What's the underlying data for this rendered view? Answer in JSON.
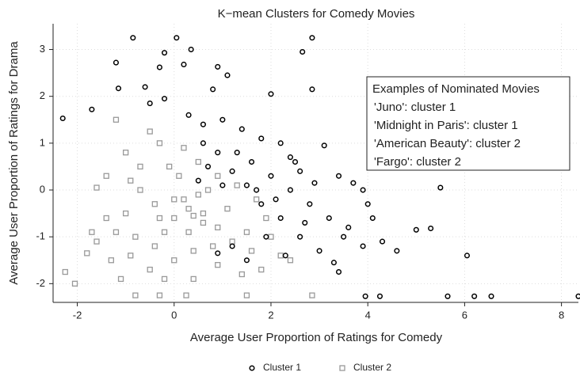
{
  "chart_data": {
    "type": "scatter",
    "title": "K−mean Clusters for Comedy Movies",
    "x_label": "Average User Proportion of Ratings for Comedy",
    "y_label": "Average User Proportion of Ratings for Drama",
    "xlim": [
      -2.5,
      8.35
    ],
    "ylim": [
      -2.4,
      3.55
    ],
    "xticks": [
      -2,
      0,
      2,
      4,
      6,
      8
    ],
    "yticks": [
      -2,
      -1,
      0,
      1,
      2,
      3
    ],
    "grid": true,
    "legend": "bottom",
    "annotation_box": {
      "title": "Examples of Nominated Movies",
      "lines": [
        "'Juno': cluster 1",
        "'Midnight in Paris': cluster 1",
        "'American Beauty': cluster 2",
        "'Fargo': cluster 2"
      ]
    },
    "series": [
      {
        "name": "Cluster 1",
        "color": "#000000",
        "marker": "circle",
        "x": [
          -2.3,
          -1.7,
          -1.2,
          -1.15,
          -0.85,
          0.05,
          0.35,
          -0.2,
          -0.3,
          0.2,
          0.9,
          1.1,
          0.8,
          2.0,
          2.65,
          2.85,
          2.85,
          -0.6,
          -0.5,
          -0.2,
          0.3,
          0.6,
          1.0,
          1.4,
          1.8,
          2.2,
          2.5,
          3.1,
          3.4,
          3.7,
          3.9,
          4.0,
          4.1,
          3.6,
          3.5,
          3.3,
          3.4,
          3.0,
          2.6,
          2.2,
          1.8,
          1.5,
          1.2,
          0.9,
          0.6,
          1.6,
          2.0,
          2.4,
          2.8,
          1.9,
          2.3,
          1.5,
          1.2,
          0.9,
          4.6,
          4.3,
          5.0,
          5.3,
          5.5,
          6.05,
          3.95,
          4.25,
          5.65,
          6.2,
          6.55,
          8.35,
          2.6,
          1.7,
          2.1,
          2.9,
          1.3,
          0.5,
          0.7,
          1.0,
          2.4,
          3.2,
          2.7,
          3.9
        ],
        "values": [
          1.53,
          1.72,
          2.72,
          2.17,
          3.25,
          3.25,
          3.0,
          2.93,
          2.62,
          2.68,
          2.63,
          2.45,
          2.15,
          2.05,
          2.95,
          3.25,
          2.15,
          2.2,
          1.85,
          1.95,
          1.6,
          1.4,
          1.5,
          1.3,
          1.1,
          1.0,
          0.6,
          0.95,
          0.3,
          0.15,
          0.0,
          -0.3,
          -0.6,
          -0.8,
          -1.0,
          -1.55,
          -1.75,
          -1.3,
          -1.0,
          -0.6,
          -0.3,
          0.1,
          0.4,
          0.8,
          1.0,
          0.6,
          0.3,
          0.0,
          -0.3,
          -1.0,
          -1.4,
          -1.5,
          -1.2,
          -1.35,
          -1.3,
          -1.1,
          -0.85,
          -0.82,
          0.05,
          -1.4,
          -2.27,
          -2.27,
          -2.27,
          -2.27,
          -2.27,
          -2.27,
          0.4,
          0.0,
          -0.2,
          0.15,
          0.8,
          0.2,
          0.5,
          0.1,
          0.7,
          -0.6,
          -0.7,
          -1.2
        ]
      },
      {
        "name": "Cluster 2",
        "color": "#999999",
        "marker": "square",
        "x": [
          -2.25,
          -2.05,
          -1.8,
          -1.6,
          -1.4,
          -1.6,
          -1.3,
          -1.1,
          -0.8,
          -0.3,
          0.25,
          1.5,
          2.85,
          -1.2,
          -1.0,
          -0.7,
          -0.5,
          -0.3,
          0.2,
          0.5,
          0.9,
          1.3,
          1.7,
          1.9,
          2.2,
          1.8,
          1.4,
          0.9,
          0.4,
          0.0,
          -0.4,
          -0.8,
          -1.0,
          -0.7,
          -0.4,
          0.0,
          0.3,
          0.6,
          0.9,
          1.2,
          0.2,
          0.5,
          0.8,
          -0.2,
          0.1,
          -0.9,
          -1.2,
          1.1,
          1.5,
          0.4,
          -0.5,
          -1.4,
          -0.9,
          0.7,
          0.3,
          0.6,
          0.0,
          -0.3,
          0.4,
          1.6,
          2.0,
          -0.1,
          -1.7,
          -0.2,
          2.4
        ],
        "values": [
          -1.75,
          -2.0,
          -1.35,
          -1.1,
          -0.6,
          0.05,
          -1.5,
          -1.9,
          -2.25,
          -2.25,
          -2.25,
          -2.25,
          -2.25,
          1.5,
          0.8,
          0.5,
          1.25,
          1.0,
          0.9,
          0.6,
          0.3,
          0.1,
          -0.2,
          -0.6,
          -1.4,
          -1.7,
          -1.8,
          -1.6,
          -1.9,
          -1.5,
          -1.2,
          -1.0,
          -0.5,
          0.0,
          -0.3,
          -0.6,
          -0.9,
          -0.5,
          -0.8,
          -1.1,
          -0.2,
          -0.1,
          -1.2,
          -0.9,
          0.3,
          -1.4,
          -0.9,
          -0.4,
          -0.9,
          -1.3,
          -1.7,
          0.3,
          0.2,
          0.0,
          -0.4,
          -0.7,
          -0.2,
          -0.6,
          -0.55,
          -1.3,
          -1.0,
          0.5,
          -0.9,
          -1.9,
          -1.5
        ]
      }
    ]
  }
}
